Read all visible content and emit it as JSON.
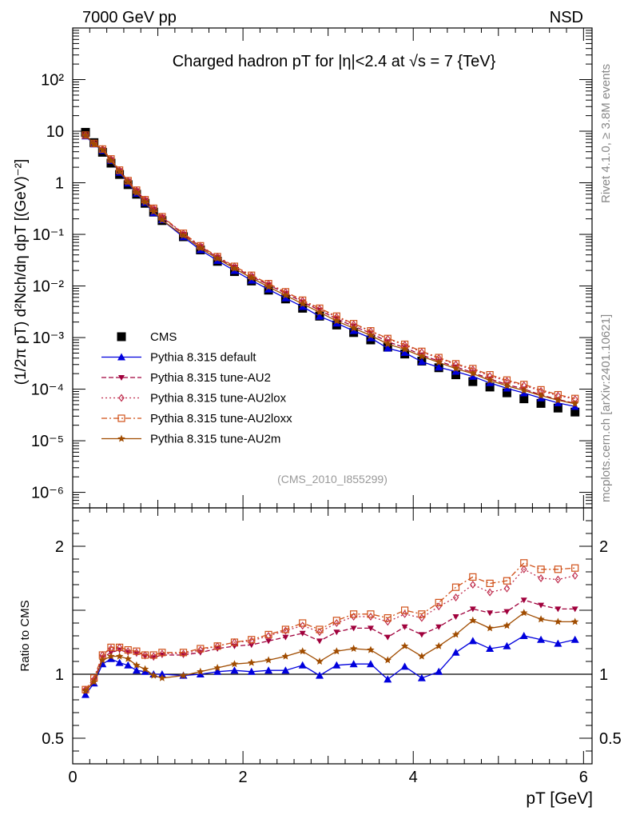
{
  "header": {
    "left": "7000 GeV pp",
    "right": "NSD"
  },
  "side": {
    "top": "Rivet 4.1.0, ≥ 3.8M events",
    "bottom": "mcplots.cern.ch [arXiv:2401.10621]"
  },
  "watermark": "(CMS_2010_I855299)",
  "chart_data": [
    {
      "type": "scatter",
      "panel": "main",
      "title": "Charged hadron pT for |η|<2.4 at √s = 7 {TeV}",
      "ylabel": "(1/2π pT) d²Nch/dη dpT [(GeV)⁻²]",
      "xlabel": "pT [GeV]",
      "yscale": "log",
      "ylim": [
        5e-07,
        1000
      ],
      "xlim": [
        0,
        6.1
      ],
      "x": [
        0.15,
        0.25,
        0.35,
        0.45,
        0.55,
        0.65,
        0.75,
        0.85,
        0.95,
        1.05,
        1.3,
        1.5,
        1.7,
        1.9,
        2.1,
        2.3,
        2.5,
        2.7,
        2.9,
        3.1,
        3.3,
        3.5,
        3.7,
        3.9,
        4.1,
        4.3,
        4.5,
        4.7,
        4.9,
        5.1,
        5.3,
        5.5,
        5.7,
        5.9
      ],
      "xticks": [
        0,
        2,
        4,
        6
      ],
      "yticks": [
        "10⁻⁶",
        "10⁻⁵",
        "10⁻⁴",
        "10⁻³",
        "10⁻²",
        "10⁻¹",
        "1",
        "10",
        "10²"
      ],
      "series": [
        {
          "name": "CMS",
          "color": "#000000",
          "marker": "square",
          "values": [
            9.5,
            6.0,
            3.9,
            2.4,
            1.45,
            0.92,
            0.6,
            0.4,
            0.27,
            0.185,
            0.09,
            0.05,
            0.03,
            0.019,
            0.0125,
            0.0083,
            0.0056,
            0.0037,
            0.0026,
            0.00175,
            0.00125,
            0.0009,
            0.00065,
            0.00048,
            0.00035,
            0.00026,
            0.00019,
            0.00014,
            0.00011,
            8.5e-05,
            6.5e-05,
            5.3e-05,
            4.3e-05,
            3.6e-05
          ]
        },
        {
          "name": "Pythia 8.315 default",
          "color": "#0000dd",
          "marker": "triangle-up",
          "line": "solid",
          "values": [
            8.0,
            5.6,
            4.2,
            2.68,
            1.58,
            0.98,
            0.62,
            0.41,
            0.26,
            0.19,
            0.089,
            0.05,
            0.031,
            0.0197,
            0.0128,
            0.0086,
            0.0058,
            0.00396,
            0.00257,
            0.00189,
            0.00135,
            0.00098,
            0.00062,
            0.00051,
            0.00034,
            0.000265,
            0.00022,
            0.000176,
            0.000132,
            0.000104,
            8.4e-05,
            6.7e-05,
            5.4e-05,
            4.6e-05
          ]
        },
        {
          "name": "Pythia 8.315 tune-AU2",
          "color": "#a0003c",
          "marker": "triangle-down",
          "line": "dashed",
          "values": [
            8.3,
            5.7,
            4.4,
            2.8,
            1.72,
            1.08,
            0.7,
            0.46,
            0.31,
            0.215,
            0.101,
            0.058,
            0.036,
            0.0232,
            0.0153,
            0.0105,
            0.0072,
            0.0049,
            0.0034,
            0.0023,
            0.00166,
            0.00122,
            0.00083,
            0.00064,
            0.00046,
            0.00035,
            0.00027,
            0.00021,
            0.000158,
            0.000123,
            0.000101,
            7.7e-05,
            6.3e-05,
            5.3e-05
          ]
        },
        {
          "name": "Pythia 8.315 tune-AU2lox",
          "color": "#c03050",
          "marker": "diamond-open",
          "line": "dotted",
          "values": [
            8.4,
            5.75,
            4.5,
            2.88,
            1.75,
            1.09,
            0.71,
            0.47,
            0.32,
            0.218,
            0.104,
            0.06,
            0.037,
            0.024,
            0.016,
            0.011,
            0.0076,
            0.0052,
            0.0036,
            0.0025,
            0.0018,
            0.00133,
            0.00094,
            0.00072,
            0.00052,
            0.0004,
            0.0003,
            0.00024,
            0.00018,
            0.000144,
            0.000118,
            9.2e-05,
            7.5e-05,
            6.4e-05
          ]
        },
        {
          "name": "Pythia 8.315 tune-AU2loxx",
          "color": "#d05018",
          "marker": "square-open",
          "line": "dashdot",
          "values": [
            8.4,
            5.8,
            4.5,
            2.9,
            1.76,
            1.1,
            0.72,
            0.47,
            0.32,
            0.22,
            0.105,
            0.06,
            0.037,
            0.024,
            0.0161,
            0.0111,
            0.0077,
            0.0053,
            0.0037,
            0.0026,
            0.00186,
            0.00135,
            0.00096,
            0.00074,
            0.00054,
            0.00041,
            0.00031,
            0.00025,
            0.00019,
            0.00015,
            0.000123,
            9.7e-05,
            7.8e-05,
            6.6e-05
          ]
        },
        {
          "name": "Pythia 8.315 tune-AU2m",
          "color": "#a04c00",
          "marker": "star",
          "line": "solid",
          "values": [
            8.3,
            5.65,
            4.3,
            2.7,
            1.65,
            1.03,
            0.64,
            0.42,
            0.275,
            0.19,
            0.095,
            0.054,
            0.034,
            0.0218,
            0.0143,
            0.0096,
            0.0066,
            0.0045,
            0.0031,
            0.0021,
            0.00152,
            0.0011,
            0.00075,
            0.00059,
            0.00043,
            0.00033,
            0.00025,
            0.0002,
            0.000148,
            0.000116,
            9.4e-05,
            7.5e-05,
            6.1e-05,
            5.2e-05
          ]
        }
      ]
    },
    {
      "type": "line",
      "panel": "ratio",
      "ylabel": "Ratio to CMS",
      "xlabel": "pT [GeV]",
      "ylim": [
        0.3,
        2.3
      ],
      "xlim": [
        0,
        6.1
      ],
      "yticks": [
        0.5,
        1,
        2
      ],
      "reference": 1,
      "x": [
        0.15,
        0.25,
        0.35,
        0.45,
        0.55,
        0.65,
        0.75,
        0.85,
        0.95,
        1.05,
        1.3,
        1.5,
        1.7,
        1.9,
        2.1,
        2.3,
        2.5,
        2.7,
        2.9,
        3.1,
        3.3,
        3.5,
        3.7,
        3.9,
        4.1,
        4.3,
        4.5,
        4.7,
        4.9,
        5.1,
        5.3,
        5.5,
        5.7,
        5.9
      ],
      "series": [
        {
          "name": "Pythia 8.315 default",
          "values": [
            0.84,
            0.93,
            1.08,
            1.12,
            1.09,
            1.07,
            1.03,
            1.02,
            1.0,
            1.0,
            0.99,
            1.0,
            1.02,
            1.03,
            1.02,
            1.03,
            1.03,
            1.07,
            0.99,
            1.07,
            1.08,
            1.08,
            0.96,
            1.06,
            0.97,
            1.02,
            1.17,
            1.26,
            1.2,
            1.22,
            1.3,
            1.27,
            1.24,
            1.27
          ]
        },
        {
          "name": "Pythia 8.315 tune-AU2",
          "values": [
            0.87,
            0.95,
            1.13,
            1.17,
            1.19,
            1.17,
            1.16,
            1.14,
            1.13,
            1.15,
            1.15,
            1.17,
            1.2,
            1.22,
            1.23,
            1.26,
            1.29,
            1.32,
            1.26,
            1.33,
            1.36,
            1.36,
            1.29,
            1.37,
            1.31,
            1.37,
            1.45,
            1.51,
            1.48,
            1.49,
            1.58,
            1.54,
            1.51,
            1.51
          ]
        },
        {
          "name": "Pythia 8.315 tune-AU2lox",
          "values": [
            0.88,
            0.96,
            1.15,
            1.2,
            1.21,
            1.18,
            1.17,
            1.15,
            1.14,
            1.16,
            1.16,
            1.19,
            1.22,
            1.25,
            1.26,
            1.3,
            1.34,
            1.38,
            1.33,
            1.4,
            1.45,
            1.45,
            1.41,
            1.47,
            1.44,
            1.53,
            1.6,
            1.7,
            1.64,
            1.67,
            1.82,
            1.75,
            1.74,
            1.77
          ]
        },
        {
          "name": "Pythia 8.315 tune-AU2loxx",
          "values": [
            0.88,
            0.97,
            1.15,
            1.21,
            1.21,
            1.19,
            1.18,
            1.15,
            1.15,
            1.17,
            1.17,
            1.2,
            1.22,
            1.25,
            1.27,
            1.31,
            1.35,
            1.4,
            1.35,
            1.42,
            1.47,
            1.47,
            1.44,
            1.5,
            1.47,
            1.56,
            1.68,
            1.76,
            1.71,
            1.73,
            1.87,
            1.82,
            1.82,
            1.83
          ]
        },
        {
          "name": "Pythia 8.315 tune-AU2m",
          "values": [
            0.87,
            0.94,
            1.11,
            1.14,
            1.14,
            1.12,
            1.07,
            1.04,
            0.99,
            0.97,
            0.99,
            1.02,
            1.05,
            1.08,
            1.09,
            1.11,
            1.14,
            1.18,
            1.1,
            1.18,
            1.2,
            1.19,
            1.11,
            1.22,
            1.14,
            1.22,
            1.31,
            1.42,
            1.36,
            1.38,
            1.48,
            1.43,
            1.41,
            1.41
          ]
        }
      ]
    }
  ]
}
